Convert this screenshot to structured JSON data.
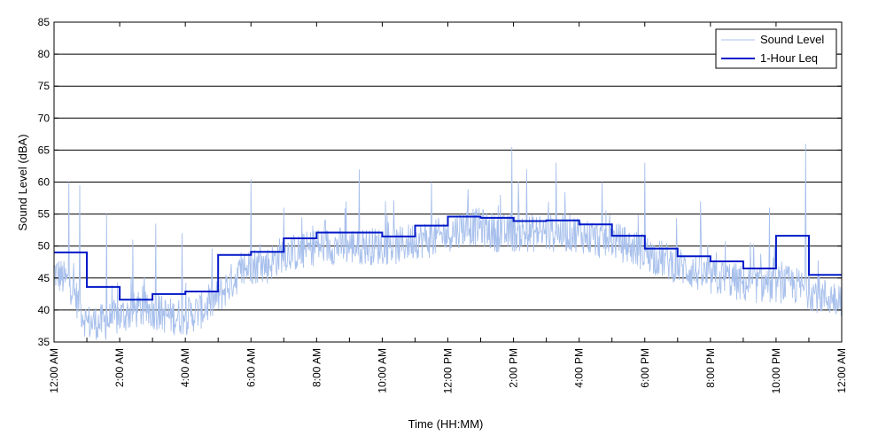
{
  "chart_data": {
    "type": "line",
    "title": "",
    "xlabel": "Time (HH:MM)",
    "ylabel": "Sound Level (dBA)",
    "xlim": [
      0,
      24
    ],
    "ylim": [
      35,
      85
    ],
    "yticks": [
      35,
      40,
      45,
      50,
      55,
      60,
      65,
      70,
      75,
      80,
      85
    ],
    "xticks": [
      {
        "hour": 0,
        "label": "12:00 AM"
      },
      {
        "hour": 2,
        "label": "2:00 AM"
      },
      {
        "hour": 4,
        "label": "4:00 AM"
      },
      {
        "hour": 6,
        "label": "6:00 AM"
      },
      {
        "hour": 8,
        "label": "8:00 AM"
      },
      {
        "hour": 10,
        "label": "10:00 AM"
      },
      {
        "hour": 12,
        "label": "12:00 PM"
      },
      {
        "hour": 14,
        "label": "2:00 PM"
      },
      {
        "hour": 16,
        "label": "4:00 PM"
      },
      {
        "hour": 18,
        "label": "6:00 PM"
      },
      {
        "hour": 20,
        "label": "8:00 PM"
      },
      {
        "hour": 22,
        "label": "10:00 PM"
      },
      {
        "hour": 24,
        "label": "12:00 AM"
      }
    ],
    "grid": "horizontal",
    "legend_position": "top-right",
    "series": [
      {
        "name": "Sound Level",
        "color": "#a8c0ec",
        "style": "thin-line",
        "x": [
          0,
          0.5,
          1,
          1.5,
          2,
          2.5,
          3,
          3.5,
          4,
          4.5,
          5,
          5.5,
          6,
          6.5,
          7,
          7.5,
          8,
          8.5,
          9,
          9.5,
          10,
          10.5,
          11,
          11.5,
          12,
          12.5,
          13,
          13.5,
          14,
          14.5,
          15,
          15.5,
          16,
          16.5,
          17,
          17.5,
          18,
          18.5,
          19,
          19.5,
          20,
          20.5,
          21,
          21.5,
          22,
          22.5,
          23,
          23.5,
          24
        ],
        "values": [
          46,
          44,
          38,
          38,
          39,
          40,
          40,
          39,
          39,
          40,
          42,
          45,
          47,
          47,
          49,
          49,
          50,
          50,
          50,
          50,
          50,
          50,
          51,
          51,
          52,
          53,
          53,
          52,
          52,
          52,
          52,
          52,
          52,
          51,
          51,
          50,
          49,
          48,
          47,
          46,
          45,
          45,
          44,
          44,
          44,
          44,
          43,
          42,
          42
        ],
        "peaks": [
          {
            "x": 0.45,
            "y": 60
          },
          {
            "x": 0.78,
            "y": 59.5
          },
          {
            "x": 1.6,
            "y": 55
          },
          {
            "x": 2.4,
            "y": 51
          },
          {
            "x": 3.1,
            "y": 53.5
          },
          {
            "x": 3.9,
            "y": 52
          },
          {
            "x": 6.0,
            "y": 60.5
          },
          {
            "x": 7.0,
            "y": 56
          },
          {
            "x": 8.9,
            "y": 57
          },
          {
            "x": 9.3,
            "y": 62
          },
          {
            "x": 10.1,
            "y": 57
          },
          {
            "x": 11.5,
            "y": 60
          },
          {
            "x": 13.6,
            "y": 58
          },
          {
            "x": 13.95,
            "y": 65.5
          },
          {
            "x": 14.4,
            "y": 62
          },
          {
            "x": 15.3,
            "y": 63
          },
          {
            "x": 16.7,
            "y": 60
          },
          {
            "x": 18.0,
            "y": 63
          },
          {
            "x": 19.7,
            "y": 57
          },
          {
            "x": 21.8,
            "y": 56
          },
          {
            "x": 22.9,
            "y": 66
          }
        ]
      },
      {
        "name": "1-Hour Leq",
        "color": "#0018c8",
        "style": "step",
        "values": [
          49,
          43.6,
          41.6,
          42.5,
          42.9,
          48.6,
          49.1,
          51.2,
          52.1,
          52.1,
          51.5,
          53.2,
          54.6,
          54.4,
          53.9,
          54,
          53.4,
          51.6,
          49.6,
          48.4,
          47.6,
          46.5,
          51.6,
          45.5
        ]
      }
    ]
  }
}
